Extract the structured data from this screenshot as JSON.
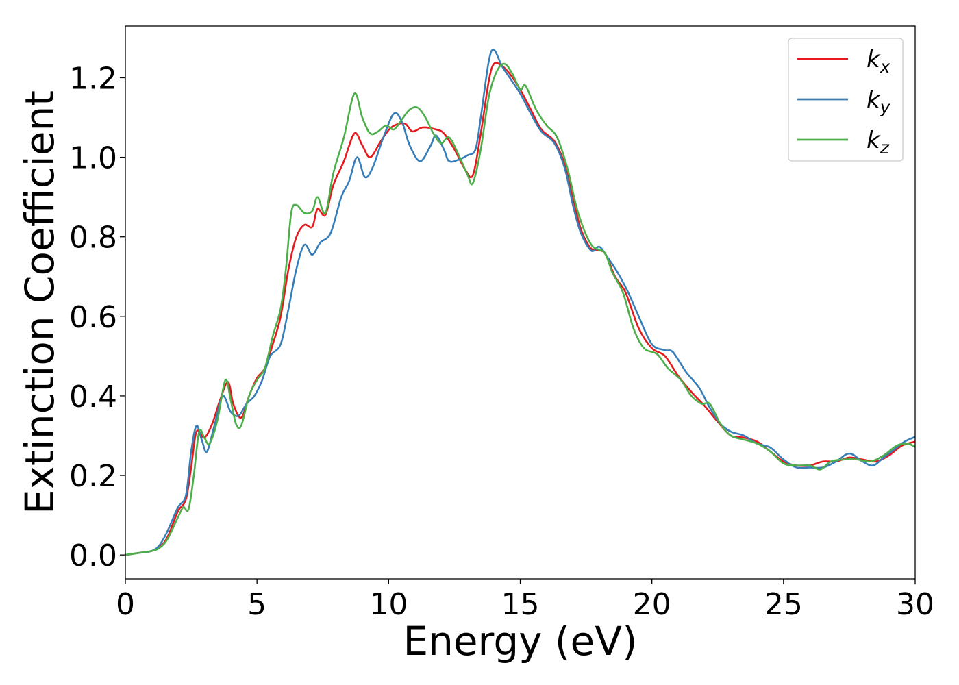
{
  "chart_data": {
    "type": "line",
    "xlabel": "Energy (eV)",
    "ylabel": "Extinction Coefficient",
    "xlim": [
      0,
      30
    ],
    "ylim": [
      -0.06,
      1.33
    ],
    "xticks": [
      "0",
      "5",
      "10",
      "15",
      "20",
      "25",
      "30"
    ],
    "yticks": [
      "0.0",
      "0.2",
      "0.4",
      "0.6",
      "0.8",
      "1.0",
      "1.2"
    ],
    "grid": false,
    "legend_position": "top-right",
    "series": [
      {
        "name": "k_x",
        "legend_main": "k",
        "legend_sub": "x",
        "color": "#e41a1c",
        "points": [
          [
            0,
            0
          ],
          [
            0.5,
            0.005
          ],
          [
            1,
            0.01
          ],
          [
            1.3,
            0.02
          ],
          [
            1.6,
            0.045
          ],
          [
            2,
            0.11
          ],
          [
            2.3,
            0.14
          ],
          [
            2.5,
            0.22
          ],
          [
            2.7,
            0.31
          ],
          [
            3,
            0.295
          ],
          [
            3.3,
            0.33
          ],
          [
            3.6,
            0.39
          ],
          [
            3.9,
            0.435
          ],
          [
            4.1,
            0.38
          ],
          [
            4.4,
            0.345
          ],
          [
            4.7,
            0.4
          ],
          [
            5,
            0.445
          ],
          [
            5.3,
            0.47
          ],
          [
            5.6,
            0.53
          ],
          [
            5.9,
            0.6
          ],
          [
            6.2,
            0.72
          ],
          [
            6.5,
            0.8
          ],
          [
            6.8,
            0.83
          ],
          [
            7.1,
            0.825
          ],
          [
            7.3,
            0.87
          ],
          [
            7.6,
            0.855
          ],
          [
            7.9,
            0.93
          ],
          [
            8.3,
            0.99
          ],
          [
            8.7,
            1.06
          ],
          [
            9,
            1.03
          ],
          [
            9.3,
            1.0
          ],
          [
            9.7,
            1.04
          ],
          [
            10.1,
            1.075
          ],
          [
            10.6,
            1.085
          ],
          [
            10.9,
            1.065
          ],
          [
            11.3,
            1.075
          ],
          [
            11.8,
            1.07
          ],
          [
            12.1,
            1.06
          ],
          [
            12.5,
            1.02
          ],
          [
            12.9,
            0.97
          ],
          [
            13.2,
            0.955
          ],
          [
            13.5,
            1.06
          ],
          [
            13.8,
            1.19
          ],
          [
            14,
            1.235
          ],
          [
            14.3,
            1.23
          ],
          [
            14.6,
            1.21
          ],
          [
            15,
            1.17
          ],
          [
            15.4,
            1.12
          ],
          [
            15.8,
            1.07
          ],
          [
            16.3,
            1.04
          ],
          [
            16.7,
            0.98
          ],
          [
            17,
            0.9
          ],
          [
            17.3,
            0.82
          ],
          [
            17.7,
            0.77
          ],
          [
            18.2,
            0.76
          ],
          [
            18.6,
            0.7
          ],
          [
            19,
            0.66
          ],
          [
            19.5,
            0.57
          ],
          [
            20,
            0.52
          ],
          [
            20.5,
            0.5
          ],
          [
            21,
            0.45
          ],
          [
            21.5,
            0.41
          ],
          [
            22,
            0.375
          ],
          [
            22.5,
            0.335
          ],
          [
            23,
            0.3
          ],
          [
            23.5,
            0.295
          ],
          [
            24,
            0.285
          ],
          [
            24.5,
            0.26
          ],
          [
            25,
            0.235
          ],
          [
            25.5,
            0.225
          ],
          [
            26,
            0.225
          ],
          [
            26.5,
            0.235
          ],
          [
            27,
            0.235
          ],
          [
            27.5,
            0.245
          ],
          [
            28,
            0.24
          ],
          [
            28.5,
            0.235
          ],
          [
            29,
            0.25
          ],
          [
            29.5,
            0.275
          ],
          [
            30,
            0.285
          ]
        ]
      },
      {
        "name": "k_y",
        "legend_main": "k",
        "legend_sub": "y",
        "color": "#377eb8",
        "points": [
          [
            0,
            0
          ],
          [
            0.5,
            0.005
          ],
          [
            1,
            0.01
          ],
          [
            1.3,
            0.025
          ],
          [
            1.6,
            0.06
          ],
          [
            2,
            0.12
          ],
          [
            2.3,
            0.15
          ],
          [
            2.5,
            0.26
          ],
          [
            2.7,
            0.325
          ],
          [
            2.9,
            0.29
          ],
          [
            3.1,
            0.26
          ],
          [
            3.4,
            0.33
          ],
          [
            3.7,
            0.4
          ],
          [
            4,
            0.36
          ],
          [
            4.3,
            0.35
          ],
          [
            4.6,
            0.38
          ],
          [
            4.9,
            0.4
          ],
          [
            5.2,
            0.44
          ],
          [
            5.5,
            0.5
          ],
          [
            5.9,
            0.53
          ],
          [
            6.2,
            0.62
          ],
          [
            6.5,
            0.72
          ],
          [
            6.8,
            0.78
          ],
          [
            7.1,
            0.755
          ],
          [
            7.4,
            0.785
          ],
          [
            7.8,
            0.81
          ],
          [
            8.2,
            0.9
          ],
          [
            8.5,
            0.94
          ],
          [
            8.8,
            1.0
          ],
          [
            9.1,
            0.95
          ],
          [
            9.4,
            0.975
          ],
          [
            9.8,
            1.05
          ],
          [
            10.2,
            1.11
          ],
          [
            10.5,
            1.09
          ],
          [
            10.8,
            1.03
          ],
          [
            11.2,
            0.99
          ],
          [
            11.6,
            1.03
          ],
          [
            11.8,
            1.055
          ],
          [
            12.1,
            1.02
          ],
          [
            12.3,
            0.99
          ],
          [
            12.7,
            0.995
          ],
          [
            13,
            1.005
          ],
          [
            13.3,
            1.02
          ],
          [
            13.5,
            1.1
          ],
          [
            13.8,
            1.24
          ],
          [
            14,
            1.27
          ],
          [
            14.3,
            1.23
          ],
          [
            14.6,
            1.2
          ],
          [
            15,
            1.16
          ],
          [
            15.4,
            1.11
          ],
          [
            15.8,
            1.065
          ],
          [
            16.3,
            1.035
          ],
          [
            16.7,
            0.97
          ],
          [
            17,
            0.88
          ],
          [
            17.3,
            0.81
          ],
          [
            17.7,
            0.765
          ],
          [
            18,
            0.775
          ],
          [
            18.3,
            0.75
          ],
          [
            18.7,
            0.71
          ],
          [
            19.1,
            0.66
          ],
          [
            19.5,
            0.6
          ],
          [
            20,
            0.53
          ],
          [
            20.5,
            0.515
          ],
          [
            20.8,
            0.51
          ],
          [
            21.3,
            0.46
          ],
          [
            21.8,
            0.42
          ],
          [
            22.2,
            0.37
          ],
          [
            22.6,
            0.33
          ],
          [
            23,
            0.31
          ],
          [
            23.5,
            0.3
          ],
          [
            24,
            0.28
          ],
          [
            24.5,
            0.27
          ],
          [
            25,
            0.24
          ],
          [
            25.5,
            0.22
          ],
          [
            26,
            0.22
          ],
          [
            26.5,
            0.22
          ],
          [
            27,
            0.235
          ],
          [
            27.5,
            0.255
          ],
          [
            28,
            0.235
          ],
          [
            28.4,
            0.225
          ],
          [
            28.8,
            0.245
          ],
          [
            29.2,
            0.265
          ],
          [
            29.6,
            0.285
          ],
          [
            30,
            0.297
          ]
        ]
      },
      {
        "name": "k_z",
        "legend_main": "k",
        "legend_sub": "z",
        "color": "#4daf4a",
        "points": [
          [
            0,
            0
          ],
          [
            0.5,
            0.005
          ],
          [
            1,
            0.01
          ],
          [
            1.3,
            0.018
          ],
          [
            1.6,
            0.04
          ],
          [
            2,
            0.095
          ],
          [
            2.2,
            0.12
          ],
          [
            2.4,
            0.115
          ],
          [
            2.6,
            0.2
          ],
          [
            2.8,
            0.31
          ],
          [
            3,
            0.295
          ],
          [
            3.2,
            0.28
          ],
          [
            3.5,
            0.34
          ],
          [
            3.8,
            0.44
          ],
          [
            4,
            0.39
          ],
          [
            4.2,
            0.33
          ],
          [
            4.4,
            0.325
          ],
          [
            4.7,
            0.4
          ],
          [
            5,
            0.44
          ],
          [
            5.3,
            0.47
          ],
          [
            5.6,
            0.55
          ],
          [
            5.9,
            0.62
          ],
          [
            6.1,
            0.72
          ],
          [
            6.3,
            0.86
          ],
          [
            6.5,
            0.88
          ],
          [
            6.8,
            0.86
          ],
          [
            7.1,
            0.865
          ],
          [
            7.3,
            0.9
          ],
          [
            7.6,
            0.86
          ],
          [
            7.9,
            0.96
          ],
          [
            8.3,
            1.05
          ],
          [
            8.7,
            1.16
          ],
          [
            9,
            1.1
          ],
          [
            9.3,
            1.06
          ],
          [
            9.6,
            1.065
          ],
          [
            9.9,
            1.08
          ],
          [
            10.2,
            1.07
          ],
          [
            10.5,
            1.095
          ],
          [
            10.8,
            1.12
          ],
          [
            11.1,
            1.125
          ],
          [
            11.4,
            1.1
          ],
          [
            11.7,
            1.06
          ],
          [
            12,
            1.035
          ],
          [
            12.3,
            1.05
          ],
          [
            12.7,
            1.0
          ],
          [
            13,
            0.955
          ],
          [
            13.2,
            0.935
          ],
          [
            13.5,
            1.02
          ],
          [
            13.8,
            1.15
          ],
          [
            14.1,
            1.215
          ],
          [
            14.4,
            1.235
          ],
          [
            14.7,
            1.21
          ],
          [
            15,
            1.17
          ],
          [
            15.2,
            1.18
          ],
          [
            15.6,
            1.12
          ],
          [
            16,
            1.08
          ],
          [
            16.4,
            1.05
          ],
          [
            16.8,
            0.97
          ],
          [
            17.2,
            0.86
          ],
          [
            17.7,
            0.78
          ],
          [
            18.2,
            0.76
          ],
          [
            18.5,
            0.71
          ],
          [
            18.9,
            0.66
          ],
          [
            19.3,
            0.57
          ],
          [
            19.7,
            0.52
          ],
          [
            20.2,
            0.505
          ],
          [
            20.6,
            0.47
          ],
          [
            21.1,
            0.44
          ],
          [
            21.5,
            0.4
          ],
          [
            21.9,
            0.38
          ],
          [
            22.2,
            0.38
          ],
          [
            22.6,
            0.33
          ],
          [
            23,
            0.3
          ],
          [
            23.5,
            0.29
          ],
          [
            24,
            0.28
          ],
          [
            24.5,
            0.26
          ],
          [
            25,
            0.23
          ],
          [
            25.5,
            0.225
          ],
          [
            26,
            0.225
          ],
          [
            26.4,
            0.215
          ],
          [
            26.8,
            0.235
          ],
          [
            27.3,
            0.24
          ],
          [
            27.8,
            0.24
          ],
          [
            28.3,
            0.235
          ],
          [
            28.8,
            0.25
          ],
          [
            29.3,
            0.275
          ],
          [
            29.7,
            0.28
          ],
          [
            30,
            0.272
          ]
        ]
      }
    ]
  }
}
